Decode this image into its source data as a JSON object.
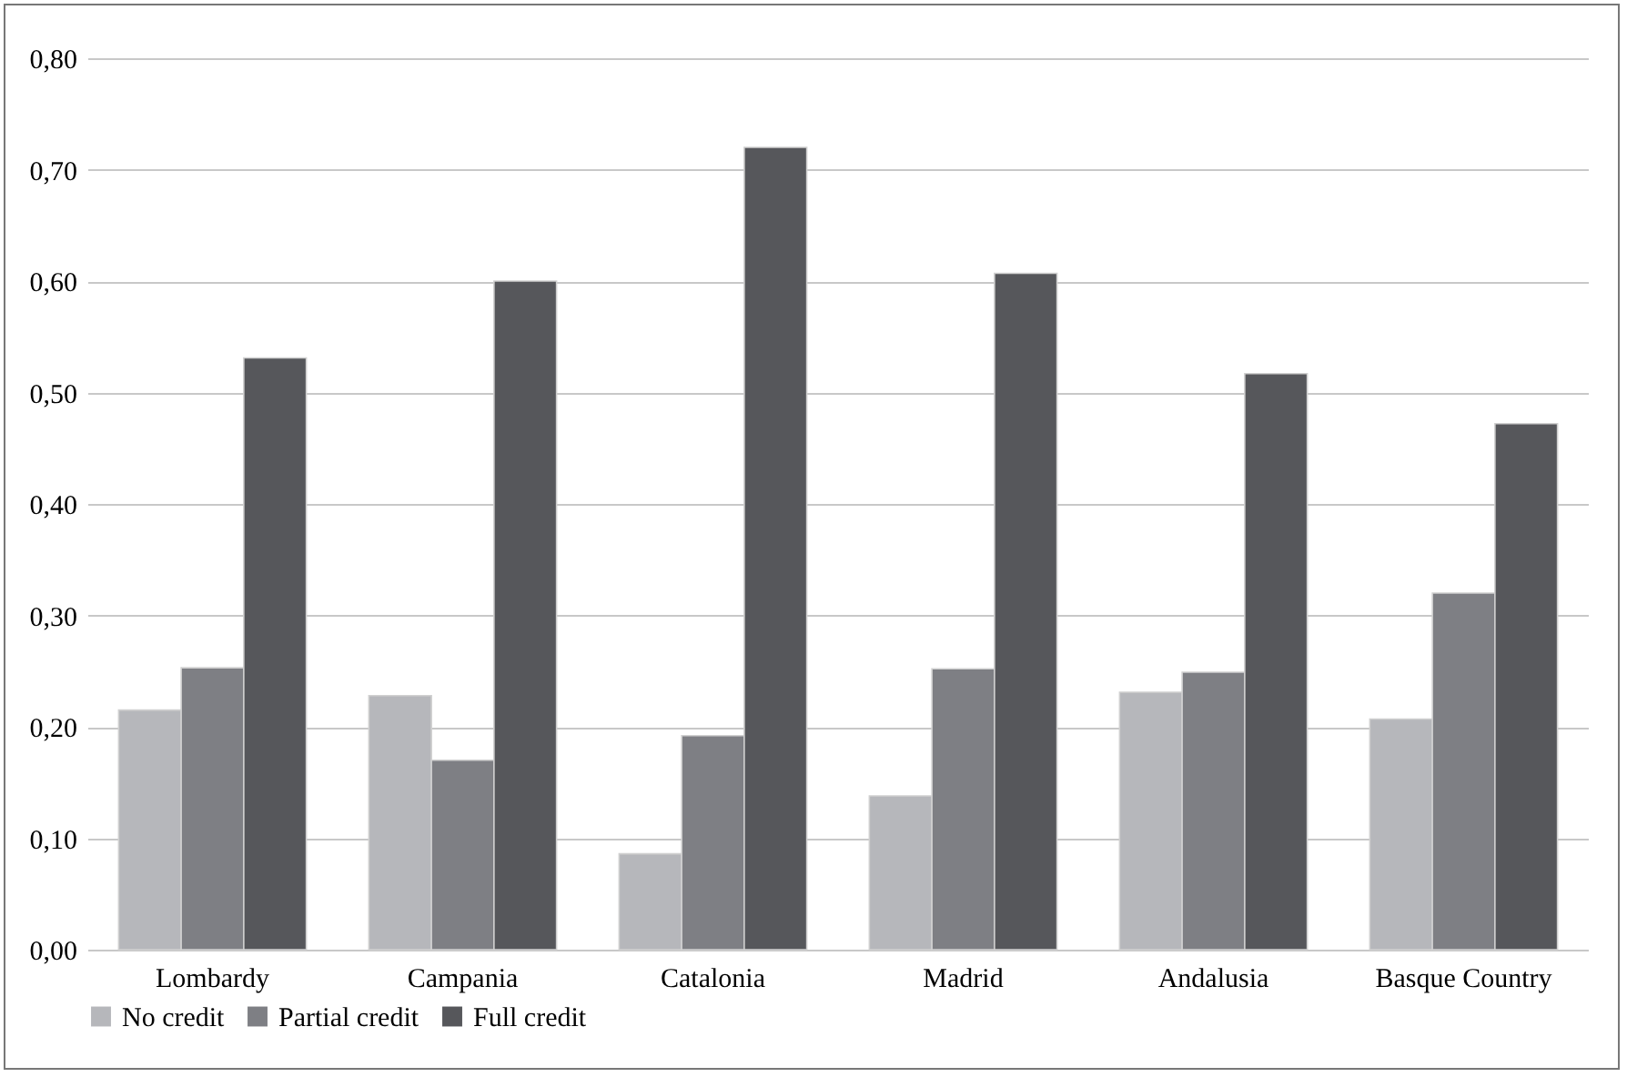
{
  "chart_data": {
    "type": "bar",
    "categories": [
      "Lombardy",
      "Campania",
      "Catalonia",
      "Madrid",
      "Andalusia",
      "Basque Country"
    ],
    "series": [
      {
        "name": "No credit",
        "color": "#b6b7bb",
        "values": [
          0.215,
          0.228,
          0.086,
          0.138,
          0.231,
          0.207
        ]
      },
      {
        "name": "Partial credit",
        "color": "#7e7f84",
        "values": [
          0.253,
          0.17,
          0.192,
          0.252,
          0.249,
          0.32
        ]
      },
      {
        "name": "Full credit",
        "color": "#56575b",
        "values": [
          0.531,
          0.6,
          0.72,
          0.607,
          0.517,
          0.472
        ]
      }
    ],
    "ylim": [
      0,
      0.8
    ],
    "yticks": [
      {
        "value": 0,
        "label": "0,00"
      },
      {
        "value": 0.1,
        "label": "0,10"
      },
      {
        "value": 0.2,
        "label": "0,20"
      },
      {
        "value": 0.3,
        "label": "0,30"
      },
      {
        "value": 0.4,
        "label": "0,40"
      },
      {
        "value": 0.5,
        "label": "0,50"
      },
      {
        "value": 0.6,
        "label": "0,60"
      },
      {
        "value": 0.7,
        "label": "0,70"
      },
      {
        "value": 0.8,
        "label": "0,80"
      }
    ],
    "grid": "y",
    "legend": "bottom"
  }
}
